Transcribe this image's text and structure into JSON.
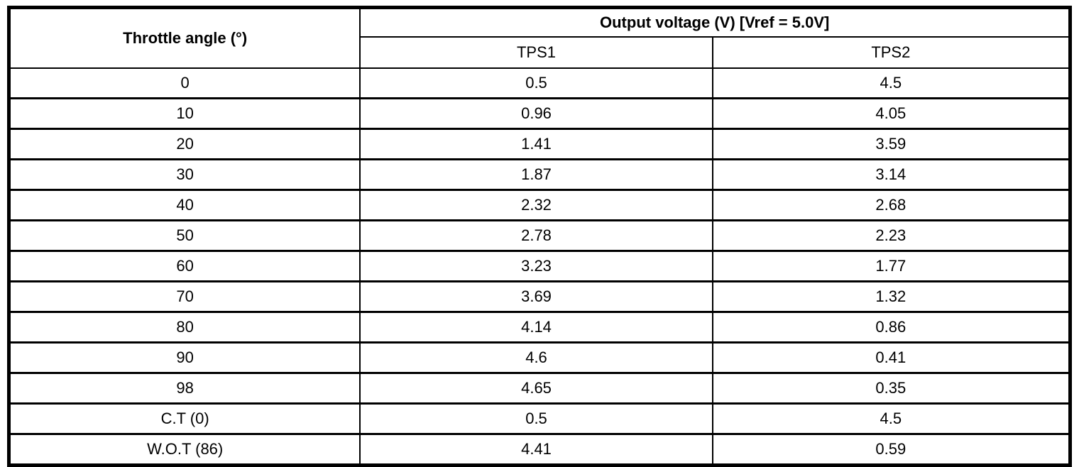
{
  "table": {
    "angle_header": "Throttle angle (°)",
    "group_header": "Output voltage (V) [Vref = 5.0V]",
    "sub_headers": {
      "tps1": "TPS1",
      "tps2": "TPS2"
    },
    "rows": [
      {
        "angle": "0",
        "tps1": "0.5",
        "tps2": "4.5"
      },
      {
        "angle": "10",
        "tps1": "0.96",
        "tps2": "4.05"
      },
      {
        "angle": "20",
        "tps1": "1.41",
        "tps2": "3.59"
      },
      {
        "angle": "30",
        "tps1": "1.87",
        "tps2": "3.14"
      },
      {
        "angle": "40",
        "tps1": "2.32",
        "tps2": "2.68"
      },
      {
        "angle": "50",
        "tps1": "2.78",
        "tps2": "2.23"
      },
      {
        "angle": "60",
        "tps1": "3.23",
        "tps2": "1.77"
      },
      {
        "angle": "70",
        "tps1": "3.69",
        "tps2": "1.32"
      },
      {
        "angle": "80",
        "tps1": "4.14",
        "tps2": "0.86"
      },
      {
        "angle": "90",
        "tps1": "4.6",
        "tps2": "0.41"
      },
      {
        "angle": "98",
        "tps1": "4.65",
        "tps2": "0.35"
      },
      {
        "angle": "C.T (0)",
        "tps1": "0.5",
        "tps2": "4.5"
      },
      {
        "angle": "W.O.T (86)",
        "tps1": "4.41",
        "tps2": "0.59"
      }
    ]
  },
  "colors": {
    "border": "#000000",
    "text": "#000000",
    "background": "#ffffff"
  }
}
